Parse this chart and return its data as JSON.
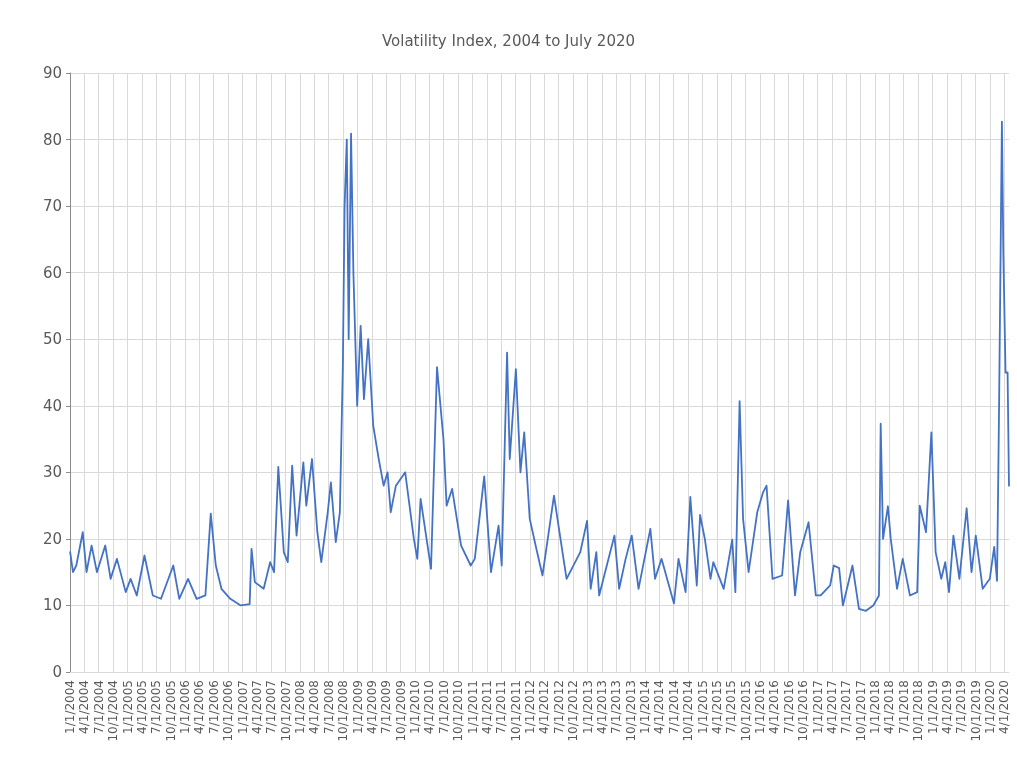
{
  "chart_data": {
    "type": "line",
    "title": "Volatility Index, 2004 to July 2020",
    "color": "#4472c4",
    "grid": true,
    "marker": "none",
    "line_style": "solid",
    "ylim": [
      0,
      90
    ],
    "yticks": [
      0,
      10,
      20,
      30,
      40,
      50,
      60,
      70,
      80,
      90
    ],
    "xlim": [
      "2004-01-01",
      "2020-04-30"
    ],
    "xticks": [
      {
        "value": "2004-01-01",
        "label": "1/1/2004"
      },
      {
        "value": "2004-04-01",
        "label": "4/1/2004"
      },
      {
        "value": "2004-07-01",
        "label": "7/1/2004"
      },
      {
        "value": "2004-10-01",
        "label": "10/1/2004"
      },
      {
        "value": "2005-01-01",
        "label": "1/1/2005"
      },
      {
        "value": "2005-04-01",
        "label": "4/1/2005"
      },
      {
        "value": "2005-07-01",
        "label": "7/1/2005"
      },
      {
        "value": "2005-10-01",
        "label": "10/1/2005"
      },
      {
        "value": "2006-01-01",
        "label": "1/1/2006"
      },
      {
        "value": "2006-04-01",
        "label": "4/1/2006"
      },
      {
        "value": "2006-07-01",
        "label": "7/1/2006"
      },
      {
        "value": "2006-10-01",
        "label": "10/1/2006"
      },
      {
        "value": "2007-01-01",
        "label": "1/1/2007"
      },
      {
        "value": "2007-04-01",
        "label": "4/1/2007"
      },
      {
        "value": "2007-07-01",
        "label": "7/1/2007"
      },
      {
        "value": "2007-10-01",
        "label": "10/1/2007"
      },
      {
        "value": "2008-01-01",
        "label": "1/1/2008"
      },
      {
        "value": "2008-04-01",
        "label": "4/1/2008"
      },
      {
        "value": "2008-07-01",
        "label": "7/1/2008"
      },
      {
        "value": "2008-10-01",
        "label": "10/1/2008"
      },
      {
        "value": "2009-01-01",
        "label": "1/1/2009"
      },
      {
        "value": "2009-04-01",
        "label": "4/1/2009"
      },
      {
        "value": "2009-07-01",
        "label": "7/1/2009"
      },
      {
        "value": "2009-10-01",
        "label": "10/1/2009"
      },
      {
        "value": "2010-01-01",
        "label": "1/1/2010"
      },
      {
        "value": "2010-04-01",
        "label": "4/1/2010"
      },
      {
        "value": "2010-07-01",
        "label": "7/1/2010"
      },
      {
        "value": "2010-10-01",
        "label": "10/1/2010"
      },
      {
        "value": "2011-01-01",
        "label": "1/1/2011"
      },
      {
        "value": "2011-04-01",
        "label": "4/1/2011"
      },
      {
        "value": "2011-07-01",
        "label": "7/1/2011"
      },
      {
        "value": "2011-10-01",
        "label": "10/1/2011"
      },
      {
        "value": "2012-01-01",
        "label": "1/1/2012"
      },
      {
        "value": "2012-04-01",
        "label": "4/1/2012"
      },
      {
        "value": "2012-07-01",
        "label": "7/1/2012"
      },
      {
        "value": "2012-10-01",
        "label": "10/1/2012"
      },
      {
        "value": "2013-01-01",
        "label": "1/1/2013"
      },
      {
        "value": "2013-04-01",
        "label": "4/1/2013"
      },
      {
        "value": "2013-07-01",
        "label": "7/1/2013"
      },
      {
        "value": "2013-10-01",
        "label": "10/1/2013"
      },
      {
        "value": "2014-01-01",
        "label": "1/1/2014"
      },
      {
        "value": "2014-04-01",
        "label": "4/1/2014"
      },
      {
        "value": "2014-07-01",
        "label": "7/1/2014"
      },
      {
        "value": "2014-10-01",
        "label": "10/1/2014"
      },
      {
        "value": "2015-01-01",
        "label": "1/1/2015"
      },
      {
        "value": "2015-04-01",
        "label": "4/1/2015"
      },
      {
        "value": "2015-07-01",
        "label": "7/1/2015"
      },
      {
        "value": "2015-10-01",
        "label": "10/1/2015"
      },
      {
        "value": "2016-01-01",
        "label": "1/1/2016"
      },
      {
        "value": "2016-04-01",
        "label": "4/1/2016"
      },
      {
        "value": "2016-07-01",
        "label": "7/1/2016"
      },
      {
        "value": "2016-10-01",
        "label": "10/1/2016"
      },
      {
        "value": "2017-01-01",
        "label": "1/1/2017"
      },
      {
        "value": "2017-04-01",
        "label": "4/1/2017"
      },
      {
        "value": "2017-07-01",
        "label": "7/1/2017"
      },
      {
        "value": "2017-10-01",
        "label": "10/1/2017"
      },
      {
        "value": "2018-01-01",
        "label": "1/1/2018"
      },
      {
        "value": "2018-04-01",
        "label": "4/1/2018"
      },
      {
        "value": "2018-07-01",
        "label": "7/1/2018"
      },
      {
        "value": "2018-10-01",
        "label": "10/1/2018"
      },
      {
        "value": "2019-01-01",
        "label": "1/1/2019"
      },
      {
        "value": "2019-04-01",
        "label": "4/1/2019"
      },
      {
        "value": "2019-07-01",
        "label": "7/1/2019"
      },
      {
        "value": "2019-10-01",
        "label": "10/1/2019"
      },
      {
        "value": "2020-01-01",
        "label": "1/1/2020"
      },
      {
        "value": "2020-04-01",
        "label": "4/1/2020"
      }
    ],
    "x": [
      "2004-01-02",
      "2004-01-20",
      "2004-02-10",
      "2004-03-22",
      "2004-04-15",
      "2004-05-17",
      "2004-06-20",
      "2004-08-12",
      "2004-09-15",
      "2004-10-25",
      "2004-12-20",
      "2005-01-20",
      "2005-02-28",
      "2005-04-18",
      "2005-06-10",
      "2005-08-01",
      "2005-10-18",
      "2005-11-25",
      "2006-01-20",
      "2006-03-15",
      "2006-05-10",
      "2006-06-13",
      "2006-07-15",
      "2006-08-20",
      "2006-10-15",
      "2006-12-20",
      "2007-02-15",
      "2007-02-27",
      "2007-03-20",
      "2007-05-15",
      "2007-06-25",
      "2007-07-20",
      "2007-08-16",
      "2007-09-20",
      "2007-10-15",
      "2007-11-12",
      "2007-12-10",
      "2008-01-22",
      "2008-02-10",
      "2008-03-17",
      "2008-04-20",
      "2008-05-15",
      "2008-06-25",
      "2008-07-15",
      "2008-08-15",
      "2008-09-10",
      "2008-09-29",
      "2008-10-10",
      "2008-10-24",
      "2008-11-05",
      "2008-11-20",
      "2008-12-05",
      "2008-12-29",
      "2009-01-20",
      "2009-02-10",
      "2009-03-09",
      "2009-04-10",
      "2009-05-15",
      "2009-06-15",
      "2009-07-10",
      "2009-07-30",
      "2009-09-01",
      "2009-10-30",
      "2009-12-24",
      "2010-01-15",
      "2010-02-05",
      "2010-04-12",
      "2010-05-20",
      "2010-06-30",
      "2010-07-20",
      "2010-08-24",
      "2010-10-20",
      "2010-12-20",
      "2011-01-15",
      "2011-03-16",
      "2011-04-28",
      "2011-06-15",
      "2011-07-05",
      "2011-08-08",
      "2011-08-25",
      "2011-10-03",
      "2011-11-01",
      "2011-11-25",
      "2011-12-30",
      "2012-02-15",
      "2012-03-20",
      "2012-06-01",
      "2012-07-25",
      "2012-08-20",
      "2012-11-15",
      "2012-12-28",
      "2013-01-20",
      "2013-02-25",
      "2013-03-15",
      "2013-06-20",
      "2013-07-20",
      "2013-08-30",
      "2013-10-08",
      "2013-11-20",
      "2014-02-03",
      "2014-03-05",
      "2014-04-15",
      "2014-07-03",
      "2014-08-01",
      "2014-09-15",
      "2014-10-15",
      "2014-11-25",
      "2014-12-16",
      "2015-01-15",
      "2015-02-20",
      "2015-03-10",
      "2015-05-15",
      "2015-07-08",
      "2015-07-28",
      "2015-08-24",
      "2015-09-15",
      "2015-10-20",
      "2015-12-14",
      "2016-01-20",
      "2016-02-11",
      "2016-03-20",
      "2016-05-20",
      "2016-06-27",
      "2016-08-10",
      "2016-09-12",
      "2016-11-04",
      "2016-12-20",
      "2017-01-20",
      "2017-03-21",
      "2017-04-13",
      "2017-05-17",
      "2017-06-10",
      "2017-08-10",
      "2017-09-20",
      "2017-11-03",
      "2017-12-20",
      "2018-01-25",
      "2018-02-05",
      "2018-02-20",
      "2018-03-23",
      "2018-04-10",
      "2018-05-20",
      "2018-06-25",
      "2018-08-10",
      "2018-09-25",
      "2018-10-11",
      "2018-11-20",
      "2018-12-24",
      "2019-01-20",
      "2019-02-25",
      "2019-03-22",
      "2019-04-15",
      "2019-05-13",
      "2019-06-20",
      "2019-08-05",
      "2019-09-05",
      "2019-10-02",
      "2019-11-15",
      "2019-12-30",
      "2020-01-27",
      "2020-02-14",
      "2020-02-27",
      "2020-03-16",
      "2020-03-25",
      "2020-04-08",
      "2020-04-21",
      "2020-04-30"
    ],
    "values": [
      18,
      15,
      16,
      21,
      15,
      19,
      15,
      19,
      14,
      17,
      12,
      14,
      11.5,
      17.5,
      11.5,
      11,
      16,
      11,
      14,
      11,
      11.5,
      23.8,
      16,
      12.5,
      11,
      10,
      10.2,
      18.5,
      13.5,
      12.5,
      16.5,
      15,
      30.8,
      18,
      16.5,
      31,
      20.5,
      31.5,
      25,
      32,
      21,
      16.5,
      24,
      28.5,
      19.5,
      24,
      46,
      70,
      80,
      50,
      80.9,
      60,
      40,
      52,
      41,
      50,
      37,
      32,
      28,
      30,
      24,
      28,
      30,
      20,
      17,
      26,
      15.5,
      45.8,
      35,
      25,
      27.5,
      19,
      16,
      17,
      29.4,
      15,
      22,
      16,
      48,
      32,
      45.5,
      30,
      36,
      23,
      18,
      14.5,
      26.5,
      18,
      14,
      18,
      22.7,
      12.5,
      18,
      11.5,
      20.5,
      12.5,
      17,
      20.5,
      12.5,
      21.5,
      14,
      17,
      10.3,
      17,
      12,
      26.3,
      13,
      23.6,
      20,
      14,
      16.5,
      12.5,
      19.9,
      12,
      40.7,
      23,
      15,
      24,
      27,
      28,
      14,
      14.5,
      25.8,
      11.5,
      18,
      22.5,
      11.5,
      11.5,
      13,
      16,
      15.6,
      10,
      16,
      9.5,
      9.2,
      10,
      11.5,
      37.3,
      20,
      24.9,
      20,
      12.5,
      17,
      11.5,
      12,
      25,
      21,
      36,
      18,
      14,
      16.5,
      12,
      20.5,
      14,
      24.6,
      15,
      20.5,
      12.5,
      14,
      18.8,
      13.7,
      40,
      82.7,
      63,
      45,
      45,
      28
    ]
  }
}
